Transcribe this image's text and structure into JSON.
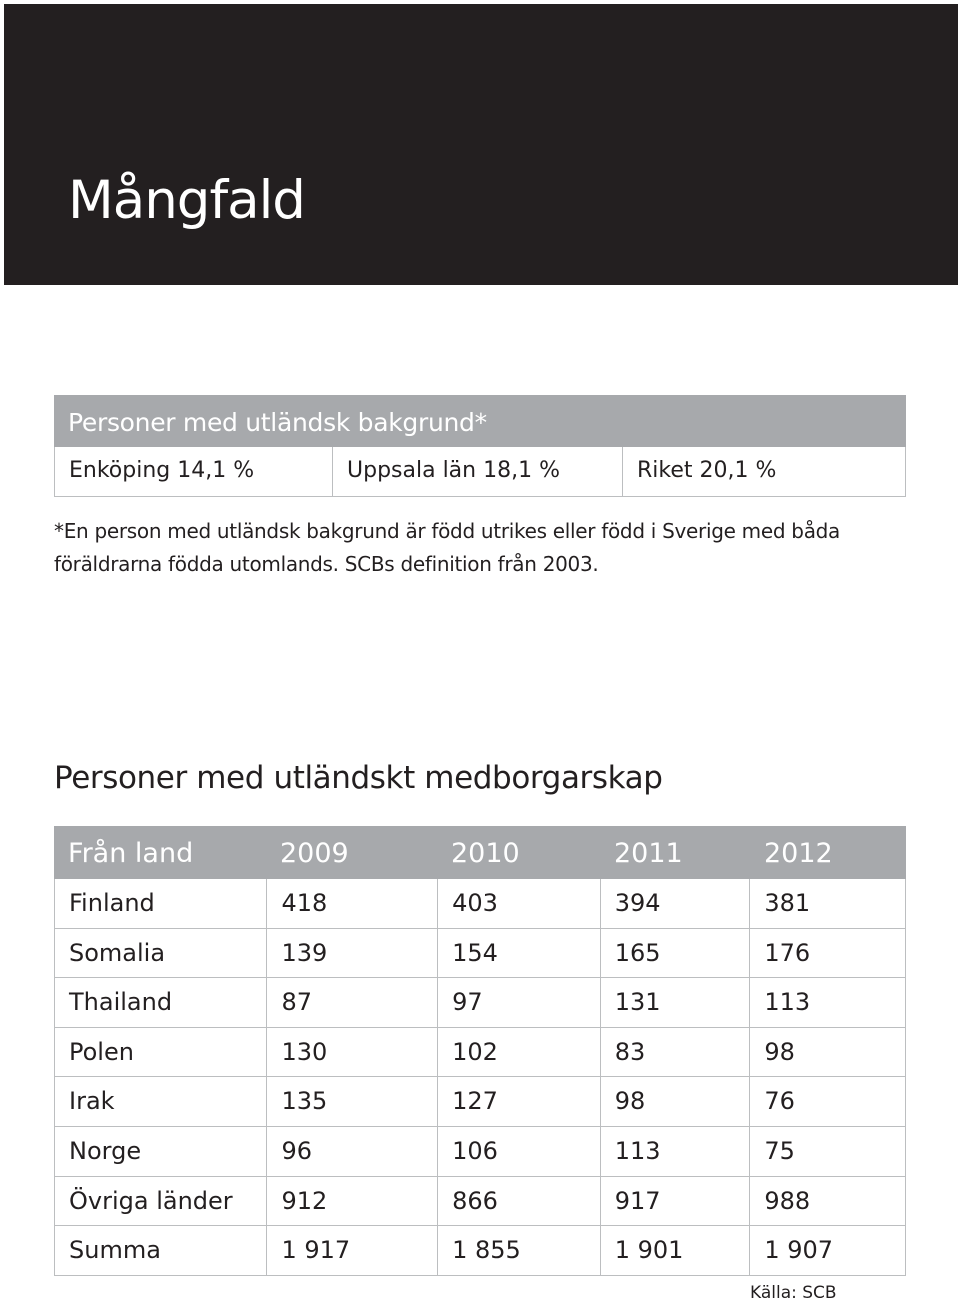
{
  "header": {
    "title": "Mångfald",
    "background_color": "#231f20"
  },
  "background_table": {
    "title": "Personer med utländsk bakgrund*",
    "header_color": "#a7a9ac",
    "cells": [
      "Enköping 14,1 %",
      "Uppsala län 18,1 %",
      "Riket 20,1 %"
    ]
  },
  "footnote": {
    "line1": "*En person med utländsk bakgrund är född utrikes eller född i Sverige med båda",
    "line2": "föräldrarna födda utomlands.  SCBs definition från 2003."
  },
  "citizenship": {
    "title": "Personer med utländskt medborgarskap",
    "columns": [
      "Från land",
      "2009",
      "2010",
      "2011",
      "2012"
    ],
    "rows": [
      [
        "Finland",
        "418",
        "403",
        "394",
        "381"
      ],
      [
        "Somalia",
        "139",
        "154",
        "165",
        "176"
      ],
      [
        "Thailand",
        "87",
        "97",
        "131",
        "113"
      ],
      [
        "Polen",
        "130",
        "102",
        "83",
        "98"
      ],
      [
        "Irak",
        "135",
        "127",
        "98",
        "76"
      ],
      [
        "Norge",
        "96",
        "106",
        "113",
        "75"
      ],
      [
        "Övriga länder",
        "912",
        "866",
        "917",
        "988"
      ],
      [
        "Summa",
        "1 917",
        "1 855",
        "1 901",
        "1 907"
      ]
    ],
    "source": "Källa: SCB"
  }
}
